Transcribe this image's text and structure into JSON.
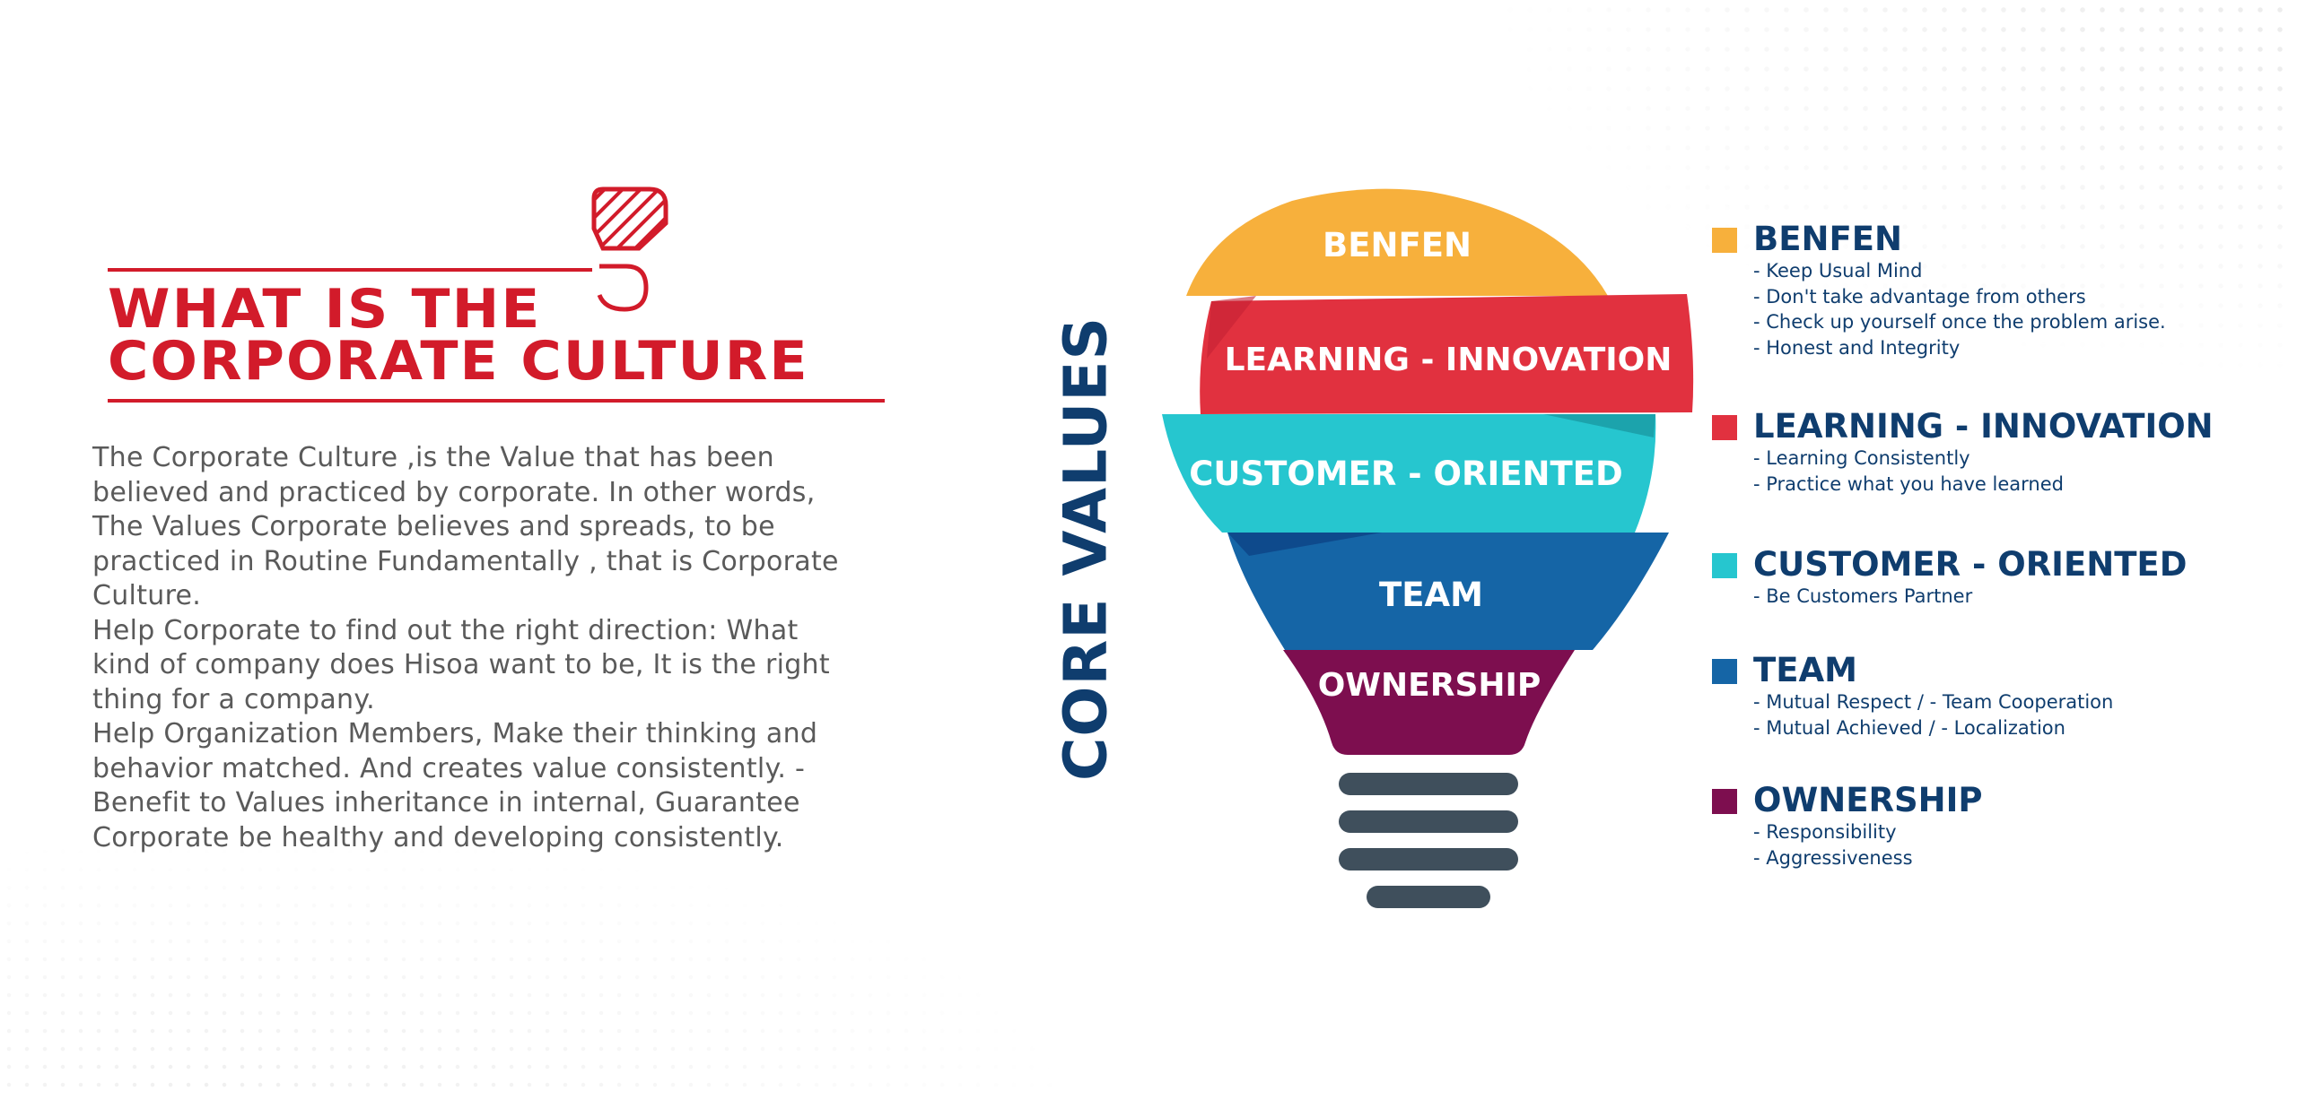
{
  "title": {
    "line1": "WHAT IS THE",
    "line2": "CORPORATE CULTURE"
  },
  "intro": {
    "lines": [
      "The Corporate Culture ,is the Value that has been",
      "believed and practiced by corporate. In other words,",
      "The Values Corporate believes and spreads, to be",
      "practiced in Routine Fundamentally , that is Corporate",
      "Culture.",
      "Help Corporate to find out the right direction: What",
      "kind of company does Hisoa want to be, It is the right",
      "thing for a company.",
      "Help Organization Members, Make their thinking and",
      "behavior matched. And creates value consistently. -",
      "Benefit to Values inheritance in internal, Guarantee",
      "Corporate be healthy and developing consistently."
    ]
  },
  "core_values_label": "CORE VALUES",
  "bulb": {
    "segments": [
      {
        "label": "BENFEN",
        "color": "#f7b03c"
      },
      {
        "label": "LEARNING - INNOVATION",
        "color": "#e1313f"
      },
      {
        "label": "CUSTOMER - ORIENTED",
        "color": "#26c6cf"
      },
      {
        "label": "TEAM",
        "color": "#1565a6"
      },
      {
        "label": "OWNERSHIP",
        "color": "#7d0e4f"
      }
    ],
    "base_color": "#3f4f5c"
  },
  "legend": [
    {
      "title": "BENFEN",
      "color": "#f7b03c",
      "items": [
        "- Keep Usual Mind",
        "- Don't take advantage from others",
        "- Check up yourself once the problem arise.",
        "- Honest and Integrity"
      ]
    },
    {
      "title": "LEARNING - INNOVATION",
      "color": "#e1313f",
      "items": [
        "- Learning Consistently",
        "- Practice what you have learned"
      ]
    },
    {
      "title": "CUSTOMER - ORIENTED",
      "color": "#26c6cf",
      "items": [
        "- Be Customers Partner"
      ]
    },
    {
      "title": "TEAM",
      "color": "#1565a6",
      "items": [
        "- Mutual Respect  /  - Team Cooperation",
        "- Mutual Achieved  /  - Localization"
      ]
    },
    {
      "title": "OWNERSHIP",
      "color": "#7d0e4f",
      "items": [
        "- Responsibility",
        "- Aggressiveness"
      ]
    }
  ]
}
